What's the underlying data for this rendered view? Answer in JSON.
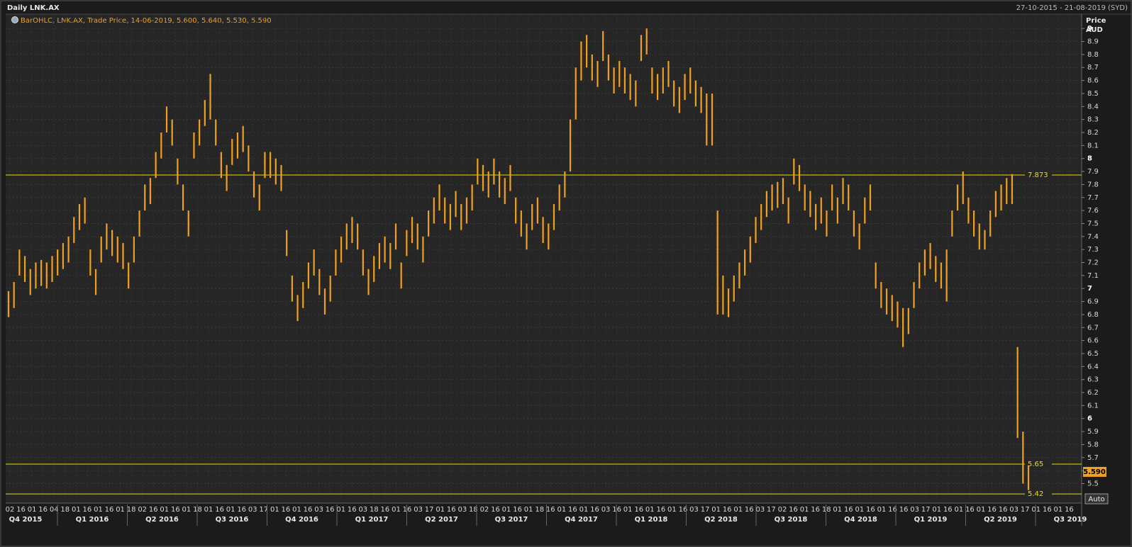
{
  "chart_data": {
    "type": "ohlc",
    "title": "Daily LNK.AX",
    "date_range": "27-10-2015 - 21-08-2019 (SYD)",
    "legend": "BarOHLC, LNK.AX, Trade Price, 14-06-2019, 5.600, 5.640, 5.530, 5.590",
    "y_axis_label": "Price",
    "y_axis_unit": "AUD",
    "auto_button": "Auto",
    "color": "#f0a020",
    "line_color": "#e8e000",
    "grid": true,
    "ylim": [
      5.35,
      9.11
    ],
    "yticks": [
      5.5,
      5.6,
      5.7,
      5.8,
      5.9,
      6,
      6.1,
      6.2,
      6.3,
      6.4,
      6.5,
      6.6,
      6.7,
      6.8,
      6.9,
      7,
      7.1,
      7.2,
      7.3,
      7.4,
      7.5,
      7.6,
      7.7,
      7.8,
      7.9,
      8,
      8.1,
      8.2,
      8.3,
      8.4,
      8.5,
      8.6,
      8.7,
      8.8,
      8.9,
      9
    ],
    "hlines": [
      7.873,
      5.65,
      5.42
    ],
    "last_price": {
      "value": 5.59,
      "label": "5.590"
    },
    "x_day_labels": [
      "02",
      "16",
      "01",
      "16",
      "04",
      "18",
      "01",
      "16",
      "01",
      "16",
      "01",
      "18",
      "02",
      "16",
      "01",
      "16",
      "01",
      "18",
      "01",
      "16",
      "01",
      "16",
      "03",
      "17",
      "01",
      "16",
      "01",
      "16",
      "03",
      "16",
      "01",
      "16",
      "03",
      "18",
      "16",
      "01",
      "16",
      "03",
      "17",
      "01",
      "16",
      "03",
      "18",
      "02",
      "16",
      "01",
      "16",
      "01",
      "18",
      "16",
      "01",
      "16",
      "01",
      "16",
      "03",
      "16",
      "01",
      "16",
      "01",
      "16",
      "01",
      "16",
      "03",
      "17",
      "01",
      "16",
      "01",
      "16",
      "03",
      "17",
      "02",
      "16",
      "01",
      "16",
      "18",
      "01",
      "16",
      "01",
      "16",
      "01",
      "16",
      "16",
      "03",
      "17",
      "01",
      "16",
      "01",
      "16",
      "01",
      "16",
      "16",
      "03",
      "17",
      "01",
      "16",
      "01",
      "16"
    ],
    "quarters": [
      "Q4 2015",
      "Q1 2016",
      "Q2 2016",
      "Q3 2016",
      "Q4 2016",
      "Q1 2017",
      "Q2 2017",
      "Q3 2017",
      "Q4 2017",
      "Q1 2018",
      "Q2 2018",
      "Q3 2018",
      "Q4 2018",
      "Q1 2019",
      "Q2 2019",
      "Q3 2019"
    ],
    "high": [
      6.98,
      7.05,
      7.3,
      7.25,
      7.15,
      7.2,
      7.22,
      7.2,
      7.25,
      7.3,
      7.35,
      7.4,
      7.55,
      7.65,
      7.7,
      7.3,
      7.15,
      7.4,
      7.5,
      7.45,
      7.4,
      7.35,
      7.2,
      7.4,
      7.6,
      7.8,
      7.85,
      8.05,
      8.2,
      8.4,
      8.3,
      8.0,
      7.8,
      7.6,
      8.2,
      8.3,
      8.45,
      8.65,
      8.3,
      8.05,
      7.95,
      8.15,
      8.2,
      8.25,
      8.1,
      7.9,
      7.8,
      8.05,
      8.05,
      8.0,
      7.95,
      7.45,
      7.1,
      6.95,
      7.05,
      7.2,
      7.3,
      7.15,
      7.0,
      7.1,
      7.3,
      7.4,
      7.5,
      7.55,
      7.5,
      7.3,
      7.15,
      7.25,
      7.35,
      7.4,
      7.35,
      7.5,
      7.2,
      7.45,
      7.55,
      7.5,
      7.4,
      7.6,
      7.7,
      7.8,
      7.7,
      7.65,
      7.75,
      7.65,
      7.7,
      7.8,
      8.0,
      7.95,
      7.9,
      8.0,
      7.9,
      7.85,
      7.95,
      7.7,
      7.6,
      7.5,
      7.65,
      7.7,
      7.55,
      7.5,
      7.65,
      7.8,
      7.9,
      8.3,
      8.7,
      8.9,
      8.95,
      8.8,
      8.75,
      8.98,
      8.8,
      8.7,
      8.75,
      8.7,
      8.65,
      8.6,
      8.95,
      9.0,
      8.7,
      8.65,
      8.7,
      8.75,
      8.6,
      8.55,
      8.65,
      8.7,
      8.6,
      8.55,
      8.5,
      8.5,
      7.6,
      7.1,
      7.0,
      7.1,
      7.2,
      7.3,
      7.4,
      7.55,
      7.65,
      7.75,
      7.8,
      7.82,
      7.85,
      7.7,
      8.0,
      7.95,
      7.8,
      7.75,
      7.65,
      7.7,
      7.6,
      7.8,
      7.7,
      7.85,
      7.8,
      7.6,
      7.5,
      7.7,
      7.8,
      7.2,
      7.05,
      7.0,
      6.95,
      6.9,
      6.85,
      6.85,
      7.05,
      7.2,
      7.3,
      7.35,
      7.25,
      7.2,
      7.3,
      7.6,
      7.8,
      7.9,
      7.7,
      7.6,
      7.5,
      7.45,
      7.6,
      7.75,
      7.8,
      7.85,
      7.88,
      6.55,
      5.9,
      5.64
    ],
    "low": [
      6.78,
      6.85,
      7.1,
      7.05,
      6.95,
      7.0,
      7.02,
      7.0,
      7.05,
      7.1,
      7.15,
      7.2,
      7.35,
      7.45,
      7.5,
      7.1,
      6.95,
      7.2,
      7.3,
      7.25,
      7.2,
      7.15,
      7.0,
      7.2,
      7.4,
      7.6,
      7.65,
      7.85,
      8.0,
      8.2,
      8.1,
      7.8,
      7.6,
      7.4,
      8.0,
      8.1,
      8.25,
      8.3,
      8.1,
      7.85,
      7.75,
      7.95,
      8.0,
      8.05,
      7.9,
      7.7,
      7.6,
      7.85,
      7.85,
      7.8,
      7.75,
      7.25,
      6.9,
      6.75,
      6.85,
      7.0,
      7.1,
      6.95,
      6.8,
      6.9,
      7.1,
      7.2,
      7.3,
      7.35,
      7.3,
      7.1,
      6.95,
      7.05,
      7.15,
      7.2,
      7.15,
      7.3,
      7.0,
      7.25,
      7.35,
      7.3,
      7.2,
      7.4,
      7.5,
      7.6,
      7.5,
      7.45,
      7.55,
      7.45,
      7.5,
      7.6,
      7.8,
      7.75,
      7.7,
      7.8,
      7.7,
      7.65,
      7.75,
      7.5,
      7.4,
      7.3,
      7.45,
      7.5,
      7.35,
      7.3,
      7.45,
      7.6,
      7.7,
      7.9,
      8.3,
      8.6,
      8.7,
      8.6,
      8.55,
      8.75,
      8.6,
      8.5,
      8.55,
      8.5,
      8.45,
      8.4,
      8.75,
      8.8,
      8.5,
      8.45,
      8.5,
      8.55,
      8.4,
      8.35,
      8.45,
      8.5,
      8.4,
      8.35,
      8.1,
      8.1,
      6.8,
      6.8,
      6.78,
      6.9,
      7.0,
      7.1,
      7.2,
      7.35,
      7.45,
      7.55,
      7.6,
      7.62,
      7.65,
      7.5,
      7.8,
      7.75,
      7.6,
      7.55,
      7.45,
      7.5,
      7.4,
      7.6,
      7.5,
      7.65,
      7.6,
      7.4,
      7.3,
      7.5,
      7.6,
      7.0,
      6.85,
      6.8,
      6.75,
      6.7,
      6.55,
      6.65,
      6.85,
      7.0,
      7.1,
      7.15,
      7.05,
      7.0,
      6.9,
      7.4,
      7.6,
      7.65,
      7.5,
      7.4,
      7.3,
      7.3,
      7.4,
      7.55,
      7.6,
      7.65,
      7.65,
      5.85,
      5.5,
      5.45
    ]
  }
}
